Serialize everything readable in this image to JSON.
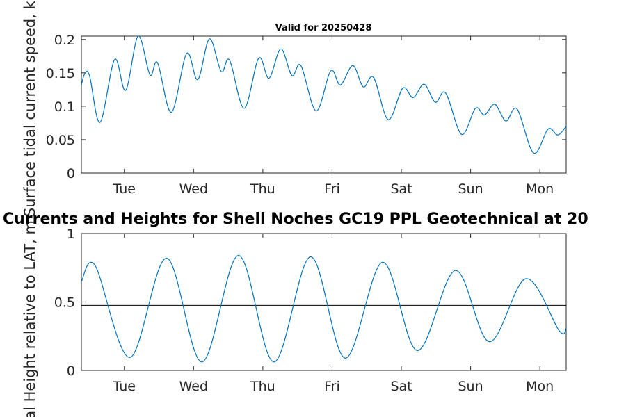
{
  "chart_data": [
    {
      "type": "line",
      "title": "Valid for 20250428",
      "ylabel": "Surface tidal current speed, knots",
      "ylabel_visible": "Surface tidal current speed, kn",
      "x_tick_labels": [
        "Tue",
        "Wed",
        "Thu",
        "Fri",
        "Sat",
        "Sun",
        "Mon"
      ],
      "xlim": [
        0,
        7
      ],
      "x_ticks": [
        0.62,
        1.62,
        2.62,
        3.62,
        4.62,
        5.62,
        6.62
      ],
      "ylim": [
        0,
        0.205
      ],
      "y_ticks": [
        0,
        0.05,
        0.1,
        0.15,
        0.2
      ],
      "y_tick_labels": [
        "0",
        "0.05",
        "0.1",
        "0.15",
        "0.2"
      ],
      "grid": false,
      "series": [
        {
          "color": "#0072bd",
          "points": [
            [
              0.0,
              0.132
            ],
            [
              0.05,
              0.149
            ],
            [
              0.12,
              0.145
            ],
            [
              0.27,
              0.076
            ],
            [
              0.48,
              0.17
            ],
            [
              0.64,
              0.124
            ],
            [
              0.82,
              0.205
            ],
            [
              0.99,
              0.147
            ],
            [
              1.1,
              0.165
            ],
            [
              1.3,
              0.091
            ],
            [
              1.52,
              0.179
            ],
            [
              1.68,
              0.14
            ],
            [
              1.85,
              0.201
            ],
            [
              2.02,
              0.152
            ],
            [
              2.14,
              0.169
            ],
            [
              2.35,
              0.097
            ],
            [
              2.56,
              0.172
            ],
            [
              2.71,
              0.142
            ],
            [
              2.88,
              0.186
            ],
            [
              3.04,
              0.146
            ],
            [
              3.17,
              0.161
            ],
            [
              3.39,
              0.093
            ],
            [
              3.6,
              0.153
            ],
            [
              3.74,
              0.132
            ],
            [
              3.92,
              0.161
            ],
            [
              4.07,
              0.129
            ],
            [
              4.22,
              0.143
            ],
            [
              4.43,
              0.08
            ],
            [
              4.64,
              0.127
            ],
            [
              4.79,
              0.113
            ],
            [
              4.95,
              0.133
            ],
            [
              5.11,
              0.106
            ],
            [
              5.26,
              0.12
            ],
            [
              5.49,
              0.058
            ],
            [
              5.69,
              0.097
            ],
            [
              5.82,
              0.087
            ],
            [
              5.97,
              0.103
            ],
            [
              6.13,
              0.078
            ],
            [
              6.29,
              0.096
            ],
            [
              6.53,
              0.03
            ],
            [
              6.74,
              0.066
            ],
            [
              6.88,
              0.057
            ],
            [
              7.0,
              0.07
            ]
          ]
        }
      ]
    },
    {
      "type": "line",
      "title": "Currents and Heights for Shell Noches   GC19 PPL  Geotechnical at 20",
      "ylabel": "Tidal Height relative to LAT, m",
      "ylabel_visible": "idal Height relative to LAT, m",
      "x_tick_labels": [
        "Tue",
        "Wed",
        "Thu",
        "Fri",
        "Sat",
        "Sun",
        "Mon"
      ],
      "xlim": [
        0,
        7
      ],
      "x_ticks": [
        0.62,
        1.62,
        2.62,
        3.62,
        4.62,
        5.62,
        6.62
      ],
      "ylim": [
        0,
        1
      ],
      "y_ticks": [
        0,
        0.5,
        1
      ],
      "y_tick_labels": [
        "0",
        "0.5",
        "1"
      ],
      "grid": false,
      "reference_line": 0.475,
      "series": [
        {
          "color": "#0072bd",
          "points": [
            [
              0.0,
              0.65
            ],
            [
              0.2,
              0.765
            ],
            [
              0.7,
              0.095
            ],
            [
              1.23,
              0.82
            ],
            [
              1.74,
              0.062
            ],
            [
              2.27,
              0.84
            ],
            [
              2.78,
              0.062
            ],
            [
              3.31,
              0.83
            ],
            [
              3.81,
              0.09
            ],
            [
              4.35,
              0.79
            ],
            [
              4.85,
              0.145
            ],
            [
              5.4,
              0.73
            ],
            [
              5.89,
              0.21
            ],
            [
              6.42,
              0.67
            ],
            [
              6.9,
              0.29
            ],
            [
              7.0,
              0.31
            ]
          ]
        }
      ]
    }
  ]
}
